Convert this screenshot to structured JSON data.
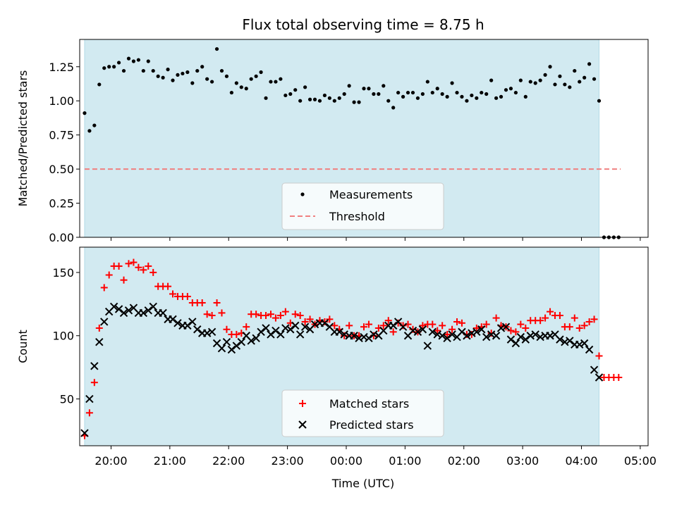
{
  "chart_data": {
    "title": "Flux total observing time = 8.75 h",
    "xlabel": "Time (UTC)",
    "x_ticks": [
      "20:00",
      "21:00",
      "22:00",
      "23:00",
      "00:00",
      "01:00",
      "02:00",
      "03:00",
      "04:00",
      "05:00"
    ],
    "x_range": [
      "19:28",
      "05:08"
    ],
    "observing_window": {
      "start": "19:33",
      "end": "04:18",
      "color": "#add8e6"
    },
    "panels": [
      {
        "type": "scatter",
        "ylabel": "Matched/Predicted stars",
        "ylim": [
          0,
          1.45
        ],
        "y_ticks": [
          "0.00",
          "0.25",
          "0.50",
          "0.75",
          "1.00",
          "1.25"
        ],
        "legend_position": "lower-center",
        "threshold": {
          "name": "Threshold",
          "value": 0.5,
          "color": "#f08080",
          "x_start": "19:33",
          "x_end": "04:40"
        },
        "series": [
          {
            "name": "Measurements",
            "marker": "dot",
            "color": "#000000",
            "times": [
              "19:33",
              "19:38",
              "19:43",
              "19:48",
              "19:53",
              "19:58",
              "20:03",
              "20:08",
              "20:13",
              "20:18",
              "20:23",
              "20:28",
              "20:33",
              "20:38",
              "20:43",
              "20:48",
              "20:53",
              "20:58",
              "21:03",
              "21:08",
              "21:13",
              "21:18",
              "21:23",
              "21:28",
              "21:33",
              "21:38",
              "21:43",
              "21:48",
              "21:53",
              "21:58",
              "22:03",
              "22:08",
              "22:13",
              "22:18",
              "22:23",
              "22:28",
              "22:33",
              "22:38",
              "22:43",
              "22:48",
              "22:53",
              "22:58",
              "23:03",
              "23:08",
              "23:13",
              "23:18",
              "23:23",
              "23:28",
              "23:33",
              "23:38",
              "23:43",
              "23:48",
              "23:53",
              "23:58",
              "00:03",
              "00:08",
              "00:13",
              "00:18",
              "00:23",
              "00:28",
              "00:33",
              "00:38",
              "00:43",
              "00:48",
              "00:53",
              "00:58",
              "01:03",
              "01:08",
              "01:13",
              "01:18",
              "01:23",
              "01:28",
              "01:33",
              "01:38",
              "01:43",
              "01:48",
              "01:53",
              "01:58",
              "02:03",
              "02:08",
              "02:13",
              "02:18",
              "02:23",
              "02:28",
              "02:33",
              "02:38",
              "02:43",
              "02:48",
              "02:53",
              "02:58",
              "03:03",
              "03:08",
              "03:13",
              "03:18",
              "03:23",
              "03:28",
              "03:33",
              "03:38",
              "03:43",
              "03:48",
              "03:53",
              "03:58",
              "04:03",
              "04:08",
              "04:13",
              "04:18",
              "04:23",
              "04:28",
              "04:33",
              "04:38"
            ],
            "values": [
              0.91,
              0.78,
              0.82,
              1.12,
              1.24,
              1.25,
              1.25,
              1.28,
              1.22,
              1.31,
              1.29,
              1.3,
              1.22,
              1.29,
              1.22,
              1.18,
              1.17,
              1.23,
              1.15,
              1.19,
              1.2,
              1.21,
              1.13,
              1.22,
              1.25,
              1.16,
              1.14,
              1.38,
              1.22,
              1.18,
              1.06,
              1.13,
              1.1,
              1.09,
              1.16,
              1.18,
              1.21,
              1.02,
              1.14,
              1.14,
              1.16,
              1.04,
              1.05,
              1.08,
              1.0,
              1.1,
              1.01,
              1.01,
              1.0,
              1.04,
              1.02,
              1.0,
              1.02,
              1.05,
              1.11,
              0.99,
              0.99,
              1.09,
              1.09,
              1.05,
              1.05,
              1.11,
              1.0,
              0.95,
              1.06,
              1.03,
              1.06,
              1.06,
              1.02,
              1.05,
              1.14,
              1.06,
              1.09,
              1.05,
              1.03,
              1.13,
              1.06,
              1.03,
              1.0,
              1.04,
              1.02,
              1.06,
              1.05,
              1.15,
              1.02,
              1.03,
              1.08,
              1.09,
              1.06,
              1.15,
              1.03,
              1.14,
              1.13,
              1.15,
              1.19,
              1.25,
              1.12,
              1.18,
              1.12,
              1.1,
              1.22,
              1.14,
              1.17,
              1.27,
              1.16,
              1.0,
              0.0,
              0.0,
              0.0,
              0.0
            ]
          }
        ]
      },
      {
        "type": "scatter",
        "ylabel": "Count",
        "ylim": [
          13,
          170
        ],
        "y_ticks": [
          "50",
          "100",
          "150"
        ],
        "legend_position": "lower-center",
        "series": [
          {
            "name": "Matched stars",
            "marker": "plus",
            "color": "#ff0000",
            "times": [
              "19:33",
              "19:38",
              "19:43",
              "19:48",
              "19:53",
              "19:58",
              "20:03",
              "20:08",
              "20:13",
              "20:18",
              "20:23",
              "20:28",
              "20:33",
              "20:38",
              "20:43",
              "20:48",
              "20:53",
              "20:58",
              "21:03",
              "21:08",
              "21:13",
              "21:18",
              "21:23",
              "21:28",
              "21:33",
              "21:38",
              "21:43",
              "21:48",
              "21:53",
              "21:58",
              "22:03",
              "22:08",
              "22:13",
              "22:18",
              "22:23",
              "22:28",
              "22:33",
              "22:38",
              "22:43",
              "22:48",
              "22:53",
              "22:58",
              "23:03",
              "23:08",
              "23:13",
              "23:18",
              "23:23",
              "23:28",
              "23:33",
              "23:38",
              "23:43",
              "23:48",
              "23:53",
              "23:58",
              "00:03",
              "00:08",
              "00:13",
              "00:18",
              "00:23",
              "00:28",
              "00:33",
              "00:38",
              "00:43",
              "00:48",
              "00:53",
              "00:58",
              "01:03",
              "01:08",
              "01:13",
              "01:18",
              "01:23",
              "01:28",
              "01:33",
              "01:38",
              "01:43",
              "01:48",
              "01:53",
              "01:58",
              "02:03",
              "02:08",
              "02:13",
              "02:18",
              "02:23",
              "02:28",
              "02:33",
              "02:38",
              "02:43",
              "02:48",
              "02:53",
              "02:58",
              "03:03",
              "03:08",
              "03:13",
              "03:18",
              "03:23",
              "03:28",
              "03:33",
              "03:38",
              "03:43",
              "03:48",
              "03:53",
              "03:58",
              "04:03",
              "04:08",
              "04:13",
              "04:18",
              "04:23",
              "04:28",
              "04:33",
              "04:38"
            ],
            "values": [
              21,
              39,
              63,
              106,
              138,
              148,
              155,
              155,
              144,
              157,
              158,
              154,
              152,
              155,
              150,
              139,
              139,
              139,
              133,
              131,
              131,
              131,
              126,
              126,
              126,
              117,
              116,
              126,
              118,
              105,
              101,
              101,
              102,
              107,
              117,
              117,
              116,
              116,
              117,
              114,
              116,
              119,
              110,
              117,
              116,
              111,
              113,
              109,
              112,
              111,
              113,
              108,
              105,
              100,
              108,
              100,
              100,
              107,
              109,
              100,
              106,
              108,
              112,
              103,
              110,
              108,
              109,
              105,
              103,
              108,
              109,
              109,
              104,
              108,
              101,
              105,
              111,
              110,
              101,
              101,
              106,
              107,
              109,
              102,
              114,
              108,
              107,
              104,
              103,
              109,
              106,
              112,
              112,
              112,
              114,
              119,
              116,
              116,
              107,
              107,
              114,
              106,
              108,
              111,
              113,
              84,
              67,
              67,
              67,
              67
            ]
          },
          {
            "name": "Predicted stars",
            "marker": "x",
            "color": "#000000",
            "times": [
              "19:33",
              "19:38",
              "19:43",
              "19:48",
              "19:53",
              "19:58",
              "20:03",
              "20:08",
              "20:13",
              "20:18",
              "20:23",
              "20:28",
              "20:33",
              "20:38",
              "20:43",
              "20:48",
              "20:53",
              "20:58",
              "21:03",
              "21:08",
              "21:13",
              "21:18",
              "21:23",
              "21:28",
              "21:33",
              "21:38",
              "21:43",
              "21:48",
              "21:53",
              "21:58",
              "22:03",
              "22:08",
              "22:13",
              "22:18",
              "22:23",
              "22:28",
              "22:33",
              "22:38",
              "22:43",
              "22:48",
              "22:53",
              "22:58",
              "23:03",
              "23:08",
              "23:13",
              "23:18",
              "23:23",
              "23:28",
              "23:33",
              "23:38",
              "23:43",
              "23:48",
              "23:53",
              "23:58",
              "00:03",
              "00:08",
              "00:13",
              "00:18",
              "00:23",
              "00:28",
              "00:33",
              "00:38",
              "00:43",
              "00:48",
              "00:53",
              "00:58",
              "01:03",
              "01:08",
              "01:13",
              "01:18",
              "01:23",
              "01:28",
              "01:33",
              "01:38",
              "01:43",
              "01:48",
              "01:53",
              "01:58",
              "02:03",
              "02:08",
              "02:13",
              "02:18",
              "02:23",
              "02:28",
              "02:33",
              "02:38",
              "02:43",
              "02:48",
              "02:53",
              "02:58",
              "03:03",
              "03:08",
              "03:13",
              "03:18",
              "03:23",
              "03:28",
              "03:33",
              "03:38",
              "03:43",
              "03:48",
              "03:53",
              "03:58",
              "04:03",
              "04:08",
              "04:13",
              "04:18"
            ],
            "values": [
              23,
              50,
              76,
              95,
              111,
              119,
              123,
              121,
              118,
              120,
              122,
              118,
              118,
              120,
              123,
              118,
              118,
              113,
              113,
              110,
              108,
              108,
              111,
              105,
              102,
              102,
              103,
              94,
              90,
              95,
              89,
              92,
              95,
              100,
              96,
              98,
              103,
              106,
              101,
              104,
              101,
              106,
              105,
              108,
              101,
              107,
              105,
              109,
              110,
              110,
              107,
              103,
              103,
              101,
              100,
              100,
              98,
              99,
              98,
              101,
              100,
              104,
              108,
              108,
              111,
              107,
              100,
              104,
              103,
              105,
              92,
              103,
              101,
              100,
              98,
              101,
              99,
              103,
              100,
              102,
              103,
              105,
              99,
              101,
              100,
              106,
              107,
              97,
              94,
              99,
              97,
              100,
              101,
              99,
              100,
              100,
              101,
              97,
              95,
              96,
              93,
              93,
              94,
              89,
              73,
              67
            ]
          }
        ]
      }
    ]
  }
}
